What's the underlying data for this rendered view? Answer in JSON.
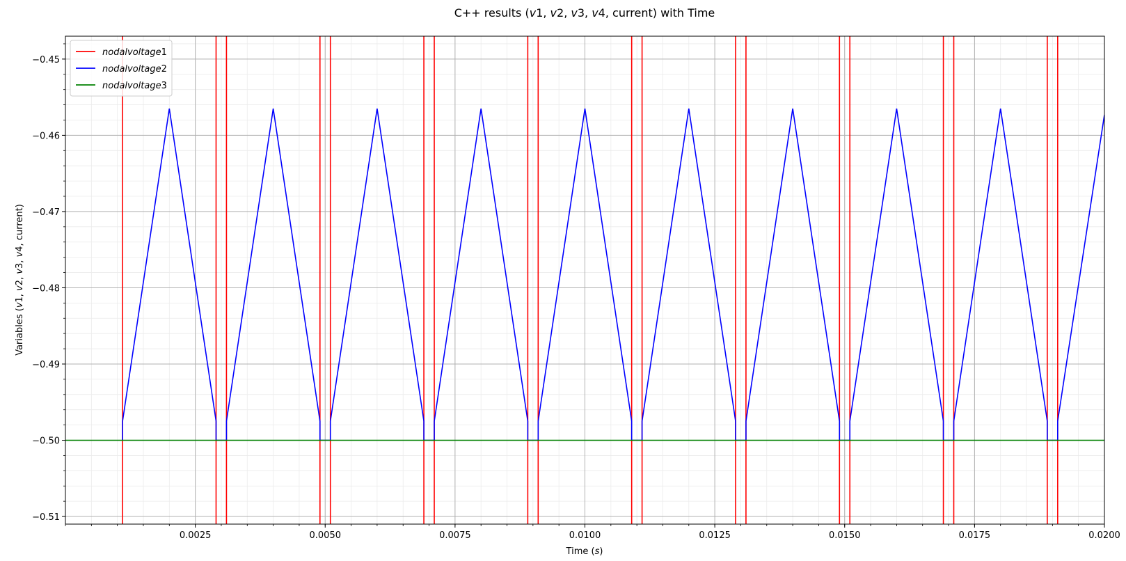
{
  "chart_data": {
    "type": "line",
    "title": "C++ results ($v1$, $v2$, $v3$, $v4$, current) with Time",
    "title_parts": [
      {
        "t": "C++ results ("
      },
      {
        "t": "v",
        "i": true
      },
      {
        "t": "1, "
      },
      {
        "t": "v",
        "i": true
      },
      {
        "t": "2, "
      },
      {
        "t": "v",
        "i": true
      },
      {
        "t": "3, "
      },
      {
        "t": "v",
        "i": true
      },
      {
        "t": "4, current) with Time"
      }
    ],
    "xlabel_parts": [
      {
        "t": "Time ("
      },
      {
        "t": "s",
        "i": true
      },
      {
        "t": ")"
      }
    ],
    "ylabel_parts": [
      {
        "t": "Variables ("
      },
      {
        "t": "v",
        "i": true
      },
      {
        "t": "1, "
      },
      {
        "t": "v",
        "i": true
      },
      {
        "t": "2, "
      },
      {
        "t": "v",
        "i": true
      },
      {
        "t": "3, "
      },
      {
        "t": "v",
        "i": true
      },
      {
        "t": "4, current)"
      }
    ],
    "xlim": [
      0.0,
      0.02
    ],
    "ylim": [
      -0.511,
      -0.447
    ],
    "xticks": [
      0.0025,
      0.005,
      0.0075,
      0.01,
      0.0125,
      0.015,
      0.0175,
      0.02
    ],
    "xtick_labels": [
      "0.0025",
      "0.0050",
      "0.0075",
      "0.0100",
      "0.0125",
      "0.0150",
      "0.0175",
      "0.0200"
    ],
    "yticks": [
      -0.45,
      -0.46,
      -0.47,
      -0.48,
      -0.49,
      -0.5,
      -0.51
    ],
    "ytick_labels": [
      "−0.45",
      "−0.46",
      "−0.47",
      "−0.48",
      "−0.49",
      "−0.50",
      "−0.51"
    ],
    "x_minor_step": 0.0005,
    "y_minor_step": 0.002,
    "grid": true,
    "minor_grid": true,
    "legend_position": "upper-left",
    "series": [
      {
        "name": "nodalvoltage1",
        "legend_parts": [
          {
            "t": "nodalvoltage",
            "i": true
          },
          {
            "t": "1"
          }
        ],
        "color": "#ff0000",
        "style": "vertical-spikes",
        "x": [
          0.0011,
          0.0029,
          0.0031,
          0.0049,
          0.0051,
          0.0069,
          0.0071,
          0.0089,
          0.0091,
          0.0109,
          0.0111,
          0.0129,
          0.0131,
          0.0149,
          0.0151,
          0.0169,
          0.0171,
          0.0189,
          0.0191
        ]
      },
      {
        "name": "nodalvoltage2",
        "legend_parts": [
          {
            "t": "nodalvoltage",
            "i": true
          },
          {
            "t": "2"
          }
        ],
        "color": "#0000ff",
        "style": "line",
        "x": [
          0.0011,
          0.0011,
          0.002,
          0.0029,
          0.0029,
          0.0031,
          0.0031,
          0.004,
          0.0049,
          0.0049,
          0.0051,
          0.0051,
          0.006,
          0.0069,
          0.0069,
          0.0071,
          0.0071,
          0.008,
          0.0089,
          0.0089,
          0.0091,
          0.0091,
          0.01,
          0.0109,
          0.0109,
          0.0111,
          0.0111,
          0.012,
          0.0129,
          0.0129,
          0.0131,
          0.0131,
          0.014,
          0.0149,
          0.0149,
          0.0151,
          0.0151,
          0.016,
          0.0169,
          0.0169,
          0.0171,
          0.0171,
          0.018,
          0.0189,
          0.0189,
          0.0191,
          0.0191,
          0.02
        ],
        "y": [
          -0.5,
          -0.4975,
          -0.4565,
          -0.4975,
          -0.5,
          -0.5,
          -0.4975,
          -0.4565,
          -0.4975,
          -0.5,
          -0.5,
          -0.4975,
          -0.4565,
          -0.4975,
          -0.5,
          -0.5,
          -0.4975,
          -0.4565,
          -0.4975,
          -0.5,
          -0.5,
          -0.4975,
          -0.4565,
          -0.4975,
          -0.5,
          -0.5,
          -0.4975,
          -0.4565,
          -0.4975,
          -0.5,
          -0.5,
          -0.4975,
          -0.4565,
          -0.4975,
          -0.5,
          -0.5,
          -0.4975,
          -0.4565,
          -0.4975,
          -0.5,
          -0.5,
          -0.4975,
          -0.4565,
          -0.4975,
          -0.5,
          -0.5,
          -0.4975,
          -0.4573
        ]
      },
      {
        "name": "nodalvoltage3",
        "legend_parts": [
          {
            "t": "nodalvoltage",
            "i": true
          },
          {
            "t": "3"
          }
        ],
        "color": "#008000",
        "style": "line",
        "x": [
          0.0,
          0.02
        ],
        "y": [
          -0.5,
          -0.5
        ]
      }
    ]
  }
}
